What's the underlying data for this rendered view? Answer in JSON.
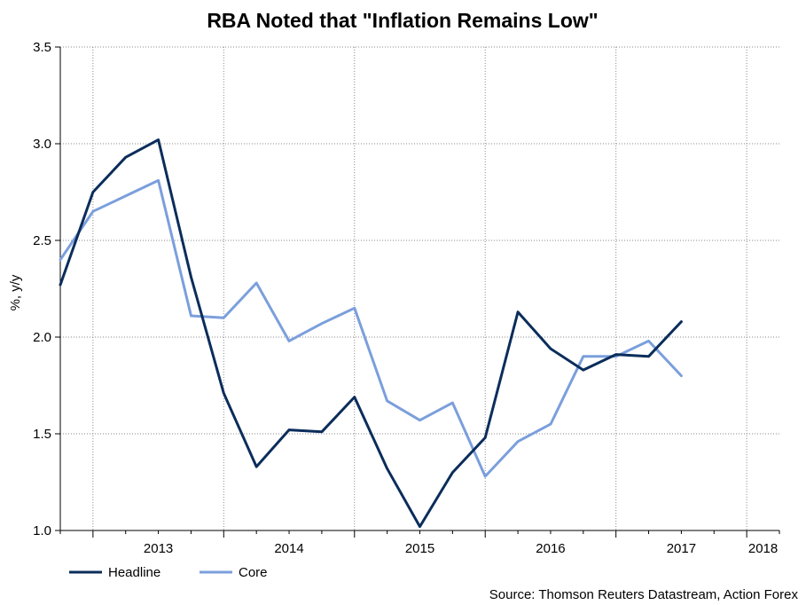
{
  "chart_data": {
    "type": "line",
    "title": "RBA Noted that \"Inflation Remains Low\"",
    "ylabel": "%, y/y",
    "xlabel": "",
    "ylim": [
      1.0,
      3.5
    ],
    "yticks": [
      "1.0",
      "1.5",
      "2.0",
      "2.5",
      "3.0",
      "3.5"
    ],
    "xticks": [
      "2013",
      "2014",
      "2015",
      "2016",
      "2017",
      "2018"
    ],
    "grid": true,
    "legend_position": "bottom-left",
    "source": "Source: Thomson Reuters Datastream, Action Forex",
    "x": [
      "2012 Q4",
      "2013 Q1",
      "2013 Q2",
      "2013 Q3",
      "2013 Q4",
      "2014 Q1",
      "2014 Q2",
      "2014 Q3",
      "2014 Q4",
      "2015 Q1",
      "2015 Q2",
      "2015 Q3",
      "2015 Q4",
      "2016 Q1",
      "2016 Q2",
      "2016 Q3",
      "2016 Q4",
      "2017 Q1",
      "2017 Q2",
      "2017 Q3",
      "2017 Q4",
      "2018 Q1",
      "2018 Q2"
    ],
    "series": [
      {
        "name": "Headline",
        "color": "#0b2d5b",
        "values": [
          2.27,
          2.75,
          2.93,
          3.02,
          2.31,
          1.71,
          1.33,
          1.52,
          1.51,
          1.69,
          1.32,
          1.02,
          1.3,
          1.48,
          2.13,
          1.94,
          1.83,
          1.91,
          1.9,
          2.08,
          null,
          null,
          null
        ]
      },
      {
        "name": "Core",
        "color": "#7b9fdc",
        "values": [
          2.4,
          2.65,
          2.73,
          2.81,
          2.11,
          2.1,
          2.28,
          1.98,
          2.07,
          2.15,
          1.67,
          1.57,
          1.66,
          1.28,
          1.46,
          1.55,
          1.9,
          1.9,
          1.98,
          1.8,
          null,
          null,
          null
        ]
      }
    ]
  }
}
